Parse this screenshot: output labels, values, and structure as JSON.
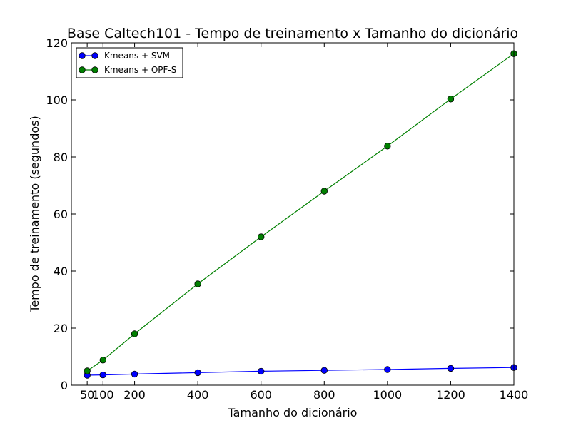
{
  "chart_data": {
    "type": "line",
    "title": "Base Caltech101 - Tempo de treinamento x Tamanho do dicionário",
    "xlabel": "Tamanho do dicionário",
    "ylabel": "Tempo de treinamento (segundos)",
    "xlim": [
      0,
      1400
    ],
    "ylim": [
      0,
      120
    ],
    "xticks": [
      50,
      100,
      200,
      400,
      600,
      800,
      1000,
      1200,
      1400
    ],
    "yticks": [
      0,
      20,
      40,
      60,
      80,
      100,
      120
    ],
    "grid": false,
    "legend_position": "top-left",
    "x": [
      50,
      100,
      200,
      400,
      600,
      800,
      1000,
      1200,
      1400
    ],
    "series": [
      {
        "name": "Kmeans + SVM",
        "color": "#0000ff",
        "marker": "circle",
        "values": [
          3.5,
          3.6,
          3.9,
          4.4,
          4.9,
          5.2,
          5.5,
          5.9,
          6.2
        ]
      },
      {
        "name": "Kmeans + OPF-S",
        "color": "#008000",
        "marker": "circle",
        "values": [
          5.0,
          8.8,
          18.0,
          35.5,
          52.0,
          68.0,
          83.8,
          100.3,
          116.2
        ]
      }
    ]
  }
}
